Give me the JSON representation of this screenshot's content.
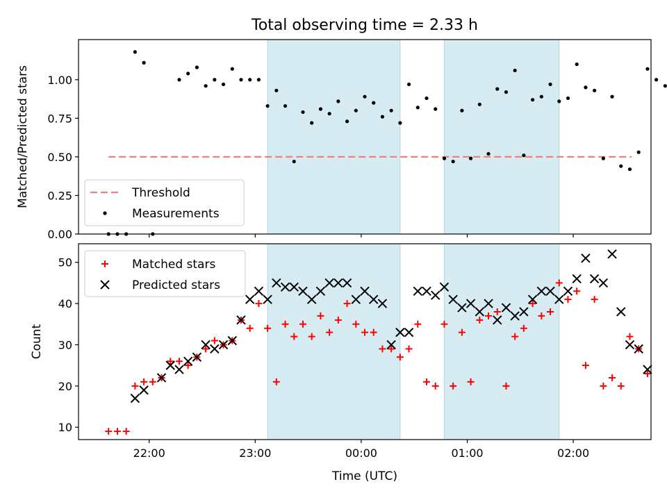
{
  "title": "Total observing time = 2.33 h",
  "chart_data": [
    {
      "type": "scatter",
      "ylabel": "Matched/Predicted stars",
      "ylim": [
        0,
        1.26
      ],
      "xlim": [
        "21:20",
        "02:44"
      ],
      "yticks": [
        "0.00",
        "0.25",
        "0.50",
        "0.75",
        "1.00"
      ],
      "threshold": {
        "name": "Threshold",
        "value": 0.5,
        "color": "#f08080",
        "x_start": "21:37",
        "x_end": "02:33"
      },
      "legend": [
        "Threshold",
        "Measurements"
      ],
      "legend_position": "lower-left",
      "shaded_intervals": [
        [
          "23:07",
          "00:22"
        ],
        [
          "00:47",
          "01:52"
        ]
      ],
      "series": [
        {
          "name": "Measurements",
          "color": "#000000",
          "points": [
            [
              "21:37",
              0.0
            ],
            [
              "21:42",
              0.0
            ],
            [
              "21:47",
              0.0
            ],
            [
              "21:52",
              1.18
            ],
            [
              "21:57",
              1.11
            ],
            [
              "22:02",
              0.0
            ],
            [
              "21:57",
              1.11
            ],
            [
              "22:17",
              1.0
            ],
            [
              "22:22",
              1.04
            ],
            [
              "22:27",
              1.08
            ],
            [
              "22:32",
              0.96
            ],
            [
              "22:37",
              1.0
            ],
            [
              "22:42",
              0.97
            ],
            [
              "22:47",
              1.07
            ],
            [
              "22:52",
              1.0
            ],
            [
              "22:57",
              1.0
            ],
            [
              "23:02",
              1.0
            ],
            [
              "23:07",
              0.83
            ],
            [
              "23:12",
              0.93
            ],
            [
              "23:17",
              0.83
            ],
            [
              "23:22",
              0.47
            ],
            [
              "23:27",
              0.79
            ],
            [
              "23:32",
              0.72
            ],
            [
              "23:37",
              0.81
            ],
            [
              "23:42",
              0.78
            ],
            [
              "23:47",
              0.86
            ],
            [
              "23:52",
              0.73
            ],
            [
              "23:57",
              0.8
            ],
            [
              "00:02",
              0.89
            ],
            [
              "00:07",
              0.85
            ],
            [
              "00:12",
              0.76
            ],
            [
              "00:17",
              0.8
            ],
            [
              "00:22",
              0.72
            ],
            [
              "00:27",
              0.97
            ],
            [
              "00:32",
              0.82
            ],
            [
              "00:37",
              0.88
            ],
            [
              "00:42",
              0.81
            ],
            [
              "00:47",
              0.49
            ],
            [
              "00:52",
              0.47
            ],
            [
              "00:57",
              0.8
            ],
            [
              "01:02",
              0.49
            ],
            [
              "01:07",
              0.84
            ],
            [
              "01:12",
              0.52
            ],
            [
              "01:17",
              0.94
            ],
            [
              "01:22",
              0.92
            ],
            [
              "01:27",
              1.06
            ],
            [
              "01:32",
              0.51
            ],
            [
              "01:37",
              0.87
            ],
            [
              "01:42",
              0.89
            ],
            [
              "01:47",
              0.97
            ],
            [
              "01:52",
              0.86
            ],
            [
              "01:57",
              0.88
            ],
            [
              "02:02",
              1.1
            ],
            [
              "02:07",
              0.95
            ],
            [
              "02:12",
              0.93
            ],
            [
              "02:17",
              0.49
            ],
            [
              "02:22",
              0.89
            ],
            [
              "02:27",
              0.44
            ],
            [
              "02:32",
              0.42
            ],
            [
              "02:37",
              0.53
            ],
            [
              "02:42",
              1.07
            ],
            [
              "02:47",
              1.0
            ],
            [
              "02:52",
              0.96
            ]
          ]
        }
      ]
    },
    {
      "type": "scatter",
      "xlabel": "Time (UTC)",
      "ylabel": "Count",
      "ylim": [
        7,
        54.5
      ],
      "xlim": [
        "21:20",
        "02:44"
      ],
      "xticks": [
        "22:00",
        "23:00",
        "00:00",
        "01:00",
        "02:00"
      ],
      "yticks": [
        10,
        20,
        30,
        40,
        50
      ],
      "legend": [
        "Matched stars",
        "Predicted stars"
      ],
      "legend_position": "upper-left",
      "shaded_intervals": [
        [
          "23:07",
          "00:22"
        ],
        [
          "00:47",
          "01:52"
        ]
      ],
      "series": [
        {
          "name": "Matched stars",
          "marker": "+",
          "color": "#ff0000",
          "points": [
            [
              "21:37",
              9
            ],
            [
              "21:42",
              9
            ],
            [
              "21:47",
              9
            ],
            [
              "21:52",
              20
            ],
            [
              "21:57",
              21
            ],
            [
              "22:02",
              21
            ],
            [
              "22:07",
              22
            ],
            [
              "22:12",
              26
            ],
            [
              "22:17",
              26
            ],
            [
              "22:22",
              25
            ],
            [
              "22:27",
              27
            ],
            [
              "22:32",
              29
            ],
            [
              "22:37",
              31
            ],
            [
              "22:42",
              30
            ],
            [
              "22:47",
              31
            ],
            [
              "22:52",
              36
            ],
            [
              "22:57",
              34
            ],
            [
              "23:02",
              40
            ],
            [
              "23:07",
              34
            ],
            [
              "23:12",
              21
            ],
            [
              "23:17",
              35
            ],
            [
              "23:22",
              32
            ],
            [
              "23:27",
              35
            ],
            [
              "23:32",
              32
            ],
            [
              "23:37",
              37
            ],
            [
              "23:42",
              33
            ],
            [
              "23:47",
              36
            ],
            [
              "23:52",
              40
            ],
            [
              "23:57",
              35
            ],
            [
              "00:02",
              33
            ],
            [
              "00:07",
              33
            ],
            [
              "00:12",
              29
            ],
            [
              "00:17",
              29
            ],
            [
              "00:22",
              27
            ],
            [
              "00:27",
              29
            ],
            [
              "00:32",
              35
            ],
            [
              "00:37",
              21
            ],
            [
              "00:42",
              20
            ],
            [
              "00:47",
              35
            ],
            [
              "00:52",
              20
            ],
            [
              "00:57",
              33
            ],
            [
              "01:02",
              21
            ],
            [
              "01:07",
              36
            ],
            [
              "01:12",
              37
            ],
            [
              "01:17",
              38
            ],
            [
              "01:22",
              20
            ],
            [
              "01:27",
              32
            ],
            [
              "01:32",
              34
            ],
            [
              "01:37",
              40
            ],
            [
              "01:42",
              37
            ],
            [
              "01:47",
              38
            ],
            [
              "01:52",
              45
            ],
            [
              "01:57",
              41
            ],
            [
              "02:02",
              43
            ],
            [
              "02:07",
              25
            ],
            [
              "02:12",
              41
            ],
            [
              "02:17",
              20
            ],
            [
              "02:22",
              22
            ],
            [
              "02:27",
              20
            ],
            [
              "02:32",
              32
            ],
            [
              "02:37",
              29
            ],
            [
              "02:42",
              23
            ]
          ]
        },
        {
          "name": "Predicted stars",
          "marker": "x",
          "color": "#000000",
          "points": [
            [
              "21:52",
              17
            ],
            [
              "21:57",
              19
            ],
            [
              "22:07",
              22
            ],
            [
              "22:12",
              25
            ],
            [
              "22:17",
              24
            ],
            [
              "22:22",
              26
            ],
            [
              "22:27",
              27
            ],
            [
              "22:32",
              30
            ],
            [
              "22:37",
              29
            ],
            [
              "22:42",
              30
            ],
            [
              "22:47",
              31
            ],
            [
              "22:52",
              36
            ],
            [
              "22:57",
              41
            ],
            [
              "23:02",
              43
            ],
            [
              "23:07",
              41
            ],
            [
              "23:12",
              45
            ],
            [
              "23:17",
              44
            ],
            [
              "23:22",
              44
            ],
            [
              "23:27",
              43
            ],
            [
              "23:32",
              41
            ],
            [
              "23:37",
              43
            ],
            [
              "23:42",
              45
            ],
            [
              "23:47",
              45
            ],
            [
              "23:52",
              45
            ],
            [
              "23:57",
              41
            ],
            [
              "00:02",
              43
            ],
            [
              "00:07",
              41
            ],
            [
              "00:12",
              40
            ],
            [
              "00:17",
              30
            ],
            [
              "00:22",
              33
            ],
            [
              "00:27",
              33
            ],
            [
              "00:32",
              43
            ],
            [
              "00:37",
              43
            ],
            [
              "00:42",
              42
            ],
            [
              "00:47",
              44
            ],
            [
              "00:52",
              41
            ],
            [
              "00:57",
              39
            ],
            [
              "01:02",
              40
            ],
            [
              "01:07",
              38
            ],
            [
              "01:12",
              40
            ],
            [
              "01:17",
              36
            ],
            [
              "01:22",
              39
            ],
            [
              "01:27",
              37
            ],
            [
              "01:32",
              38
            ],
            [
              "01:37",
              41
            ],
            [
              "01:42",
              43
            ],
            [
              "01:47",
              43
            ],
            [
              "01:52",
              41
            ],
            [
              "01:57",
              43
            ],
            [
              "02:02",
              46
            ],
            [
              "02:07",
              51
            ],
            [
              "02:12",
              46
            ],
            [
              "02:17",
              45
            ],
            [
              "02:22",
              52
            ],
            [
              "02:27",
              38
            ],
            [
              "02:32",
              30
            ],
            [
              "02:37",
              29
            ],
            [
              "02:42",
              24
            ]
          ]
        }
      ]
    }
  ]
}
